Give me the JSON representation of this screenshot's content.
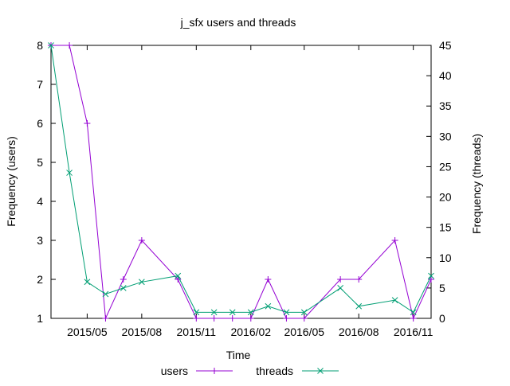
{
  "chart_data": {
    "type": "line",
    "title": "j_sfx users and threads",
    "xlabel": "Time",
    "ylabel": "Frequency (users)",
    "y2label": "Frequency (threads)",
    "x_range": [
      "2015-03-01",
      "2016-12-01"
    ],
    "y_range": [
      1,
      8
    ],
    "y2_range": [
      0,
      45
    ],
    "x_ticks": [
      {
        "date": "2015-05-01",
        "label": "2015/05"
      },
      {
        "date": "2015-08-01",
        "label": "2015/08"
      },
      {
        "date": "2015-11-01",
        "label": "2015/11"
      },
      {
        "date": "2016-02-01",
        "label": "2016/02"
      },
      {
        "date": "2016-05-01",
        "label": "2016/05"
      },
      {
        "date": "2016-08-01",
        "label": "2016/08"
      },
      {
        "date": "2016-11-01",
        "label": "2016/11"
      }
    ],
    "y_ticks": [
      1,
      2,
      3,
      4,
      5,
      6,
      7,
      8
    ],
    "y2_ticks": [
      0,
      5,
      10,
      15,
      20,
      25,
      30,
      35,
      40,
      45
    ],
    "legend_position": "bottom",
    "grid": false,
    "series": [
      {
        "name": "users",
        "axis": "left",
        "color": "#9400d3",
        "marker": "plus",
        "points": [
          [
            "2015-03-01",
            8
          ],
          [
            "2015-04-01",
            8
          ],
          [
            "2015-05-01",
            6
          ],
          [
            "2015-06-01",
            1
          ],
          [
            "2015-07-01",
            2
          ],
          [
            "2015-08-01",
            3
          ],
          [
            "2015-10-01",
            2
          ],
          [
            "2015-11-01",
            1
          ],
          [
            "2015-12-01",
            1
          ],
          [
            "2016-01-01",
            1
          ],
          [
            "2016-02-01",
            1
          ],
          [
            "2016-03-01",
            2
          ],
          [
            "2016-04-01",
            1
          ],
          [
            "2016-05-01",
            1
          ],
          [
            "2016-07-01",
            2
          ],
          [
            "2016-08-01",
            2
          ],
          [
            "2016-10-01",
            3
          ],
          [
            "2016-11-01",
            1
          ],
          [
            "2016-12-01",
            2
          ]
        ]
      },
      {
        "name": "threads",
        "axis": "right",
        "color": "#009e73",
        "marker": "cross",
        "points": [
          [
            "2015-03-01",
            45
          ],
          [
            "2015-04-01",
            24
          ],
          [
            "2015-05-01",
            6
          ],
          [
            "2015-06-01",
            4
          ],
          [
            "2015-07-01",
            5
          ],
          [
            "2015-08-01",
            6
          ],
          [
            "2015-10-01",
            7
          ],
          [
            "2015-11-01",
            1
          ],
          [
            "2015-12-01",
            1
          ],
          [
            "2016-01-01",
            1
          ],
          [
            "2016-02-01",
            1
          ],
          [
            "2016-03-01",
            2
          ],
          [
            "2016-04-01",
            1
          ],
          [
            "2016-05-01",
            1
          ],
          [
            "2016-07-01",
            5
          ],
          [
            "2016-08-01",
            2
          ],
          [
            "2016-10-01",
            3
          ],
          [
            "2016-11-01",
            1
          ],
          [
            "2016-12-01",
            7
          ]
        ]
      }
    ]
  }
}
